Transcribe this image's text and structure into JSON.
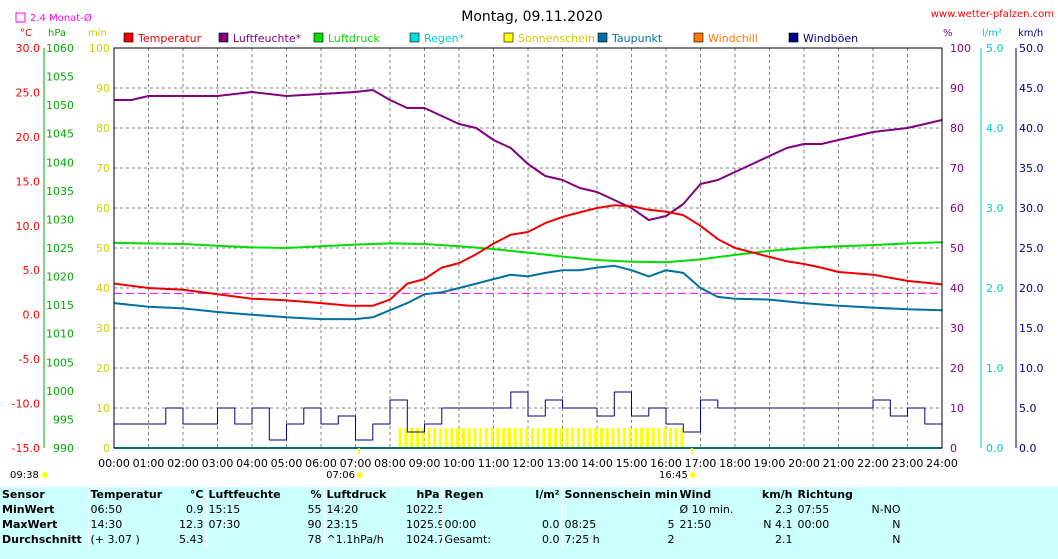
{
  "header": {
    "title": "Montag, 09.11.2020",
    "website": "www.wetter-pfalzen.com",
    "avg_label": "2.4 Monat-Ø"
  },
  "units": {
    "temp": "°C",
    "pressure": "hPa",
    "minutes": "min",
    "percent": "%",
    "rain": "l/m²",
    "wind": "km/h"
  },
  "colors": {
    "temperature": "#ee0000",
    "humidity": "#800080",
    "pressure": "#00dd00",
    "rain": "#00dddd",
    "sunshine": "#ffff00",
    "dewpoint": "#0070a0",
    "windchill": "#ff7700",
    "gusts": "#000080",
    "avg_line": "#ff00ff",
    "grid": "#808080"
  },
  "legend": [
    {
      "name": "Temperatur",
      "color": "#ee0000"
    },
    {
      "name": "Luftfeuchte*",
      "color": "#800080"
    },
    {
      "name": "Luftdruck",
      "color": "#00dd00"
    },
    {
      "name": "Regen*",
      "color": "#00dddd"
    },
    {
      "name": "Sonnenschein",
      "color": "#ffff00"
    },
    {
      "name": "Taupunkt",
      "color": "#0070a0"
    },
    {
      "name": "Windchill",
      "color": "#ff7700"
    },
    {
      "name": "Windböen",
      "color": "#000080"
    }
  ],
  "axes": {
    "temp_ticks": [
      "30.0",
      "25.0",
      "20.0",
      "15.0",
      "10.0",
      "5.0",
      "0.0",
      "-5.0",
      "-10.0",
      "-15.0"
    ],
    "pressure_ticks": [
      "1060",
      "1055",
      "1050",
      "1045",
      "1040",
      "1035",
      "1030",
      "1025",
      "1020",
      "1015",
      "1010",
      "1005",
      "1000",
      "995",
      "990"
    ],
    "minutes_ticks": [
      "100",
      "90",
      "80",
      "70",
      "60",
      "50",
      "40",
      "30",
      "20",
      "10",
      "0"
    ],
    "percent_ticks": [
      "100",
      "90",
      "80",
      "70",
      "60",
      "50",
      "40",
      "30",
      "20",
      "10",
      "0"
    ],
    "rain_ticks": [
      "5.0",
      "4.0",
      "3.0",
      "2.0",
      "1.0",
      "0.0"
    ],
    "wind_ticks": [
      "50.0",
      "45.0",
      "40.0",
      "35.0",
      "30.0",
      "25.0",
      "20.0",
      "15.0",
      "10.0",
      "5.0",
      "0.0"
    ],
    "time_ticks": [
      "00:00",
      "01:00",
      "02:00",
      "03:00",
      "04:00",
      "05:00",
      "06:00",
      "07:00",
      "08:00",
      "09:00",
      "10:00",
      "11:00",
      "12:00",
      "13:00",
      "14:00",
      "15:00",
      "16:00",
      "17:00",
      "18:00",
      "19:00",
      "20:00",
      "21:00",
      "22:00",
      "23:00",
      "24:00"
    ],
    "corner_time": "09:38",
    "sunrise": "07:06",
    "sunset": "16:45"
  },
  "chart_data": {
    "type": "line",
    "title": "Montag, 09.11.2020",
    "x_unit": "hours",
    "xlim": [
      0,
      24
    ],
    "temp_lim": [
      -15,
      30
    ],
    "pressure_lim": [
      990,
      1060
    ],
    "percent_lim": [
      0,
      100
    ],
    "rain_lim": [
      0,
      5
    ],
    "wind_lim": [
      0,
      50
    ],
    "monthly_avg_temp": 2.4,
    "series": [
      {
        "name": "Temperatur",
        "axis": "temp",
        "unit": "°C",
        "x": [
          0,
          1,
          2,
          3,
          4,
          5,
          6,
          6.83,
          7.5,
          8,
          8.5,
          9,
          9.5,
          10,
          10.5,
          11,
          11.5,
          12,
          12.5,
          13,
          13.5,
          14,
          14.5,
          15,
          15.5,
          16,
          16.5,
          17,
          17.5,
          18,
          18.5,
          19,
          19.5,
          20,
          20.5,
          21,
          22,
          23,
          24
        ],
        "y": [
          3.5,
          3.0,
          2.8,
          2.3,
          1.8,
          1.6,
          1.3,
          1.0,
          1.0,
          1.7,
          3.5,
          4.0,
          5.3,
          5.8,
          6.8,
          8.0,
          9.0,
          9.3,
          10.3,
          11.0,
          11.5,
          12.0,
          12.3,
          12.2,
          11.8,
          11.6,
          11.2,
          10.0,
          8.5,
          7.5,
          7.0,
          6.5,
          6.0,
          5.7,
          5.3,
          4.8,
          4.5,
          3.8,
          3.4
        ]
      },
      {
        "name": "Luftfeuchte*",
        "axis": "percent",
        "unit": "%",
        "x": [
          0,
          0.5,
          1,
          2,
          3,
          4,
          5,
          6,
          7,
          7.5,
          8,
          8.5,
          9,
          9.5,
          10,
          10.5,
          11,
          11.5,
          12,
          12.5,
          13,
          13.5,
          14,
          14.5,
          15,
          15.5,
          16,
          16.5,
          17,
          17.5,
          18,
          18.5,
          19,
          19.5,
          20,
          20.5,
          21,
          22,
          23,
          23.5,
          24
        ],
        "y": [
          87,
          87,
          88,
          88,
          88,
          89,
          88,
          88.5,
          89,
          89.5,
          87,
          85,
          85,
          83,
          81,
          80,
          77,
          75,
          71,
          68,
          67,
          65,
          64,
          62,
          60,
          57,
          58,
          61,
          66,
          67,
          69,
          71,
          73,
          75,
          76,
          76,
          77,
          79,
          80,
          81,
          82
        ]
      },
      {
        "name": "Luftdruck",
        "axis": "pressure",
        "unit": "hPa",
        "x": [
          0,
          2,
          3,
          4,
          5,
          6,
          7,
          8,
          9,
          10,
          11,
          12,
          13,
          14,
          15,
          16,
          17,
          18,
          19,
          20,
          21,
          22,
          23,
          24
        ],
        "y": [
          1025.9,
          1025.7,
          1025.4,
          1025.1,
          1025.0,
          1025.3,
          1025.6,
          1025.8,
          1025.7,
          1025.3,
          1024.8,
          1024.2,
          1023.5,
          1022.9,
          1022.6,
          1022.5,
          1023.0,
          1023.8,
          1024.5,
          1025.0,
          1025.3,
          1025.5,
          1025.8,
          1026.0
        ]
      },
      {
        "name": "Taupunkt",
        "axis": "temp",
        "unit": "°C",
        "x": [
          0,
          1,
          2,
          3,
          4,
          5,
          6,
          7,
          7.5,
          8,
          8.5,
          9,
          9.5,
          10,
          10.5,
          11,
          11.5,
          12,
          12.5,
          13,
          13.5,
          14,
          14.5,
          15,
          15.5,
          16,
          16.5,
          17,
          17.5,
          18,
          19,
          20,
          21,
          22,
          23,
          24
        ],
        "y": [
          1.3,
          0.9,
          0.7,
          0.3,
          0,
          -0.3,
          -0.5,
          -0.5,
          -0.3,
          0.5,
          1.3,
          2.3,
          2.5,
          3.0,
          3.5,
          4.0,
          4.5,
          4.3,
          4.7,
          5.0,
          5.0,
          5.3,
          5.5,
          5.0,
          4.3,
          5.0,
          4.7,
          3.0,
          2.0,
          1.8,
          1.7,
          1.3,
          1.0,
          0.8,
          0.6,
          0.5
        ]
      },
      {
        "name": "Windböen",
        "axis": "wind",
        "unit": "km/h",
        "x": [
          0,
          1,
          1.5,
          2,
          3,
          3.5,
          4,
          4.5,
          5,
          5.5,
          6,
          6.5,
          7,
          7.5,
          8,
          8.5,
          9,
          9.5,
          10,
          10.5,
          11,
          11.5,
          12,
          12.5,
          13,
          13.5,
          14,
          14.5,
          15,
          15.5,
          16,
          16.5,
          17,
          17.5,
          18,
          19,
          20,
          21,
          22,
          22.5,
          23,
          23.5,
          24
        ],
        "y": [
          3,
          3,
          5,
          3,
          5,
          3,
          5,
          1,
          3,
          5,
          3,
          4,
          1,
          3,
          6,
          2,
          3,
          5,
          5,
          5,
          5,
          7,
          4,
          6,
          5,
          5,
          4,
          7,
          4,
          5,
          3,
          2,
          6,
          5,
          5,
          5,
          5,
          5,
          6,
          4,
          5,
          3,
          4
        ]
      },
      {
        "name": "Sonnenschein",
        "axis": "minutes",
        "unit": "min",
        "x": [
          8.25,
          16.5
        ],
        "y": [
          5,
          5
        ]
      },
      {
        "name": "Regen*",
        "axis": "rain",
        "unit": "l/m²",
        "x": [
          0,
          24
        ],
        "y": [
          0,
          0
        ]
      }
    ]
  },
  "stats": {
    "headers": {
      "sensor": "Sensor",
      "temp": "Temperatur",
      "temp_unit": "°C",
      "hum": "Luftfeuchte",
      "hum_unit": "%",
      "press": "Luftdruck",
      "press_unit": "hPa",
      "rain": "Regen",
      "rain_unit": "l/m²",
      "sun": "Sonnenschein min",
      "wind": "Wind",
      "wind_unit": "km/h",
      "dir": "Richtung"
    },
    "rows": [
      {
        "label": "MinWert",
        "temp_time": "06:50",
        "temp_val": "0.9",
        "hum_time": "15:15",
        "hum_val": "55",
        "press_time": "14:20",
        "press_val": "1022.5",
        "rain_time": "",
        "rain_val": "",
        "sun_time": "",
        "sun_val": "",
        "wind_time": "Ø 10 min.",
        "wind_val": "2.3",
        "dir_time": "07:55",
        "dir_val": "N-NO"
      },
      {
        "label": "MaxWert",
        "temp_time": "14:30",
        "temp_val": "12.3",
        "hum_time": "07:30",
        "hum_val": "90",
        "press_time": "23:15",
        "press_val": "1025.9",
        "rain_time": "00:00",
        "rain_val": "0.0",
        "sun_time": "08:25",
        "sun_val": "5",
        "wind_time": "21:50",
        "wind_val": "N 4.1",
        "dir_time": "00:00",
        "dir_val": "N"
      },
      {
        "label": "Durchschnitt",
        "temp_time": "(+ 3.07 )",
        "temp_val": "5.43",
        "hum_time": "",
        "hum_val": "78",
        "press_time": "^1.1hPa/h",
        "press_val": "1024.7",
        "rain_time": "Gesamt:",
        "rain_val": "0.0",
        "sun_time": "7:25 h",
        "sun_val": "2",
        "wind_time": "",
        "wind_val": "2.1",
        "dir_time": "",
        "dir_val": "N"
      }
    ]
  }
}
